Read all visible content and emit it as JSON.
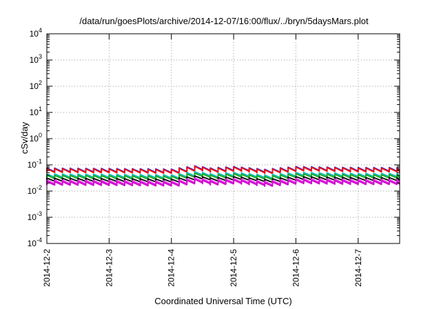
{
  "chart_data": {
    "type": "line",
    "title": "/data/run/goesPlots/archive/2014-12-07/16:00/flux/../bryn/5daysMars.plot",
    "xlabel": "Coordinated Universal Time (UTC)",
    "ylabel": "cSv/day",
    "yscale": "log",
    "ylim": [
      0.0001,
      10000
    ],
    "ytick_exponents": [
      -4,
      -3,
      -2,
      -1,
      0,
      1,
      2,
      3,
      4
    ],
    "ytick_base": "10",
    "xlim": [
      "2014-12-02T00:00",
      "2014-12-07T16:00"
    ],
    "xticks": [
      "2014-12-2",
      "2014-12-3",
      "2014-12-4",
      "2014-12-5",
      "2014-12-6",
      "2014-12-7"
    ],
    "grid": true,
    "legend": "none",
    "sawtooth_period_hours": 3,
    "level_profile": {
      "x": [
        "2014-12-02T00:00",
        "2014-12-03T00:00",
        "2014-12-04T00:00",
        "2014-12-04T10:00",
        "2014-12-04T14:00",
        "2014-12-05T00:00",
        "2014-12-05T12:00",
        "2014-12-06T00:00",
        "2014-12-07T00:00",
        "2014-12-07T16:00"
      ],
      "factor": [
        1.0,
        0.97,
        0.92,
        1.25,
        1.0,
        1.15,
        0.9,
        1.15,
        1.05,
        1.05
      ]
    },
    "series": [
      {
        "color": "#2222ff",
        "peak": 0.075,
        "base": 0.055
      },
      {
        "color": "#ee1111",
        "peak": 0.072,
        "base": 0.052
      },
      {
        "color": "#11bbbb",
        "peak": 0.045,
        "base": 0.034
      },
      {
        "color": "#22aa22",
        "peak": 0.04,
        "base": 0.03
      },
      {
        "color": "#111111",
        "peak": 0.031,
        "base": 0.024
      },
      {
        "color": "#ee22ee",
        "peak": 0.026,
        "base": 0.019
      },
      {
        "color": "#cc11cc",
        "peak": 0.023,
        "base": 0.017
      }
    ]
  }
}
